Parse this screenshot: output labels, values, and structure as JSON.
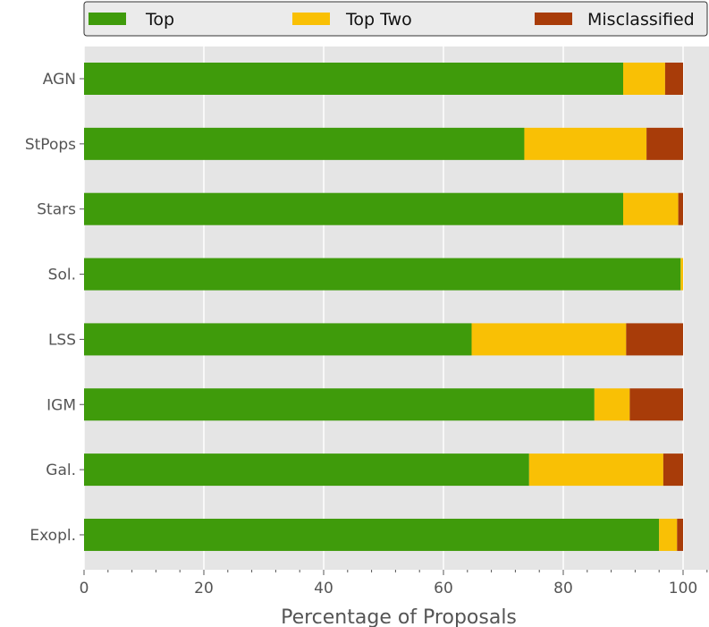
{
  "chart_data": {
    "type": "bar",
    "orientation": "horizontal",
    "stacked": true,
    "title": "",
    "xlabel": "Percentage of Proposals",
    "ylabel": "",
    "xlim": [
      0,
      104
    ],
    "xticks": [
      0,
      20,
      40,
      60,
      80,
      100
    ],
    "grid": true,
    "legend_position": "top",
    "categories": [
      "AGN",
      "StPops",
      "Stars",
      "Sol.",
      "LSS",
      "IGM",
      "Gal.",
      "Exopl."
    ],
    "series": [
      {
        "name": "Top",
        "color": "#3f9b0b",
        "values": [
          90.0,
          73.5,
          90.0,
          99.6,
          64.7,
          85.2,
          74.3,
          96.0
        ]
      },
      {
        "name": "Top Two",
        "color": "#f9c005",
        "values": [
          7.0,
          20.4,
          9.2,
          0.4,
          25.8,
          5.9,
          22.4,
          3.0
        ]
      },
      {
        "name": "Misclassified",
        "color": "#a83c09",
        "values": [
          3.0,
          6.1,
          0.8,
          0.0,
          9.5,
          8.9,
          3.3,
          1.0
        ]
      }
    ]
  }
}
